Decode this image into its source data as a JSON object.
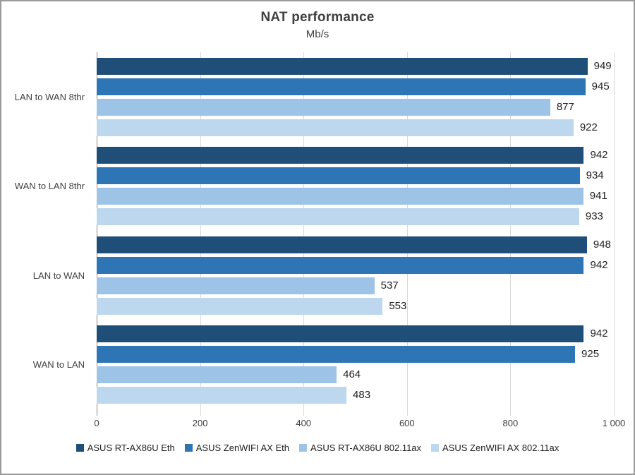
{
  "chart_data": {
    "type": "bar",
    "orientation": "horizontal",
    "title": "NAT performance",
    "subtitle": "Mb/s",
    "categories": [
      "LAN to WAN 8thr",
      "WAN to LAN 8thr",
      "LAN to WAN",
      "WAN to LAN"
    ],
    "series": [
      {
        "name": "ASUS RT-AX86U Eth",
        "color": "#1F4E79",
        "values": [
          949,
          942,
          948,
          942
        ]
      },
      {
        "name": "ASUS ZenWIFI AX Eth",
        "color": "#2E75B6",
        "values": [
          945,
          934,
          942,
          925
        ]
      },
      {
        "name": "ASUS RT-AX86U 802.11ax",
        "color": "#9DC3E6",
        "values": [
          877,
          941,
          537,
          464
        ]
      },
      {
        "name": "ASUS ZenWIFI AX 802.11ax",
        "color": "#BDD7EE",
        "values": [
          922,
          933,
          553,
          483
        ]
      }
    ],
    "x_axis": {
      "min": 0,
      "max": 1000,
      "tick_interval": 200,
      "tick_labels": [
        "0",
        "200",
        "400",
        "600",
        "800",
        "1 000"
      ]
    },
    "grid": true,
    "value_labels": true,
    "legend_position": "bottom"
  },
  "style": {
    "gridline_color": "#d9d9d9",
    "axis_line_color": "#898989",
    "text_color": "#404040",
    "value_label_color": "#1f1f1f",
    "frame_border_color": "#9a9a9a",
    "background": "#ffffff"
  }
}
